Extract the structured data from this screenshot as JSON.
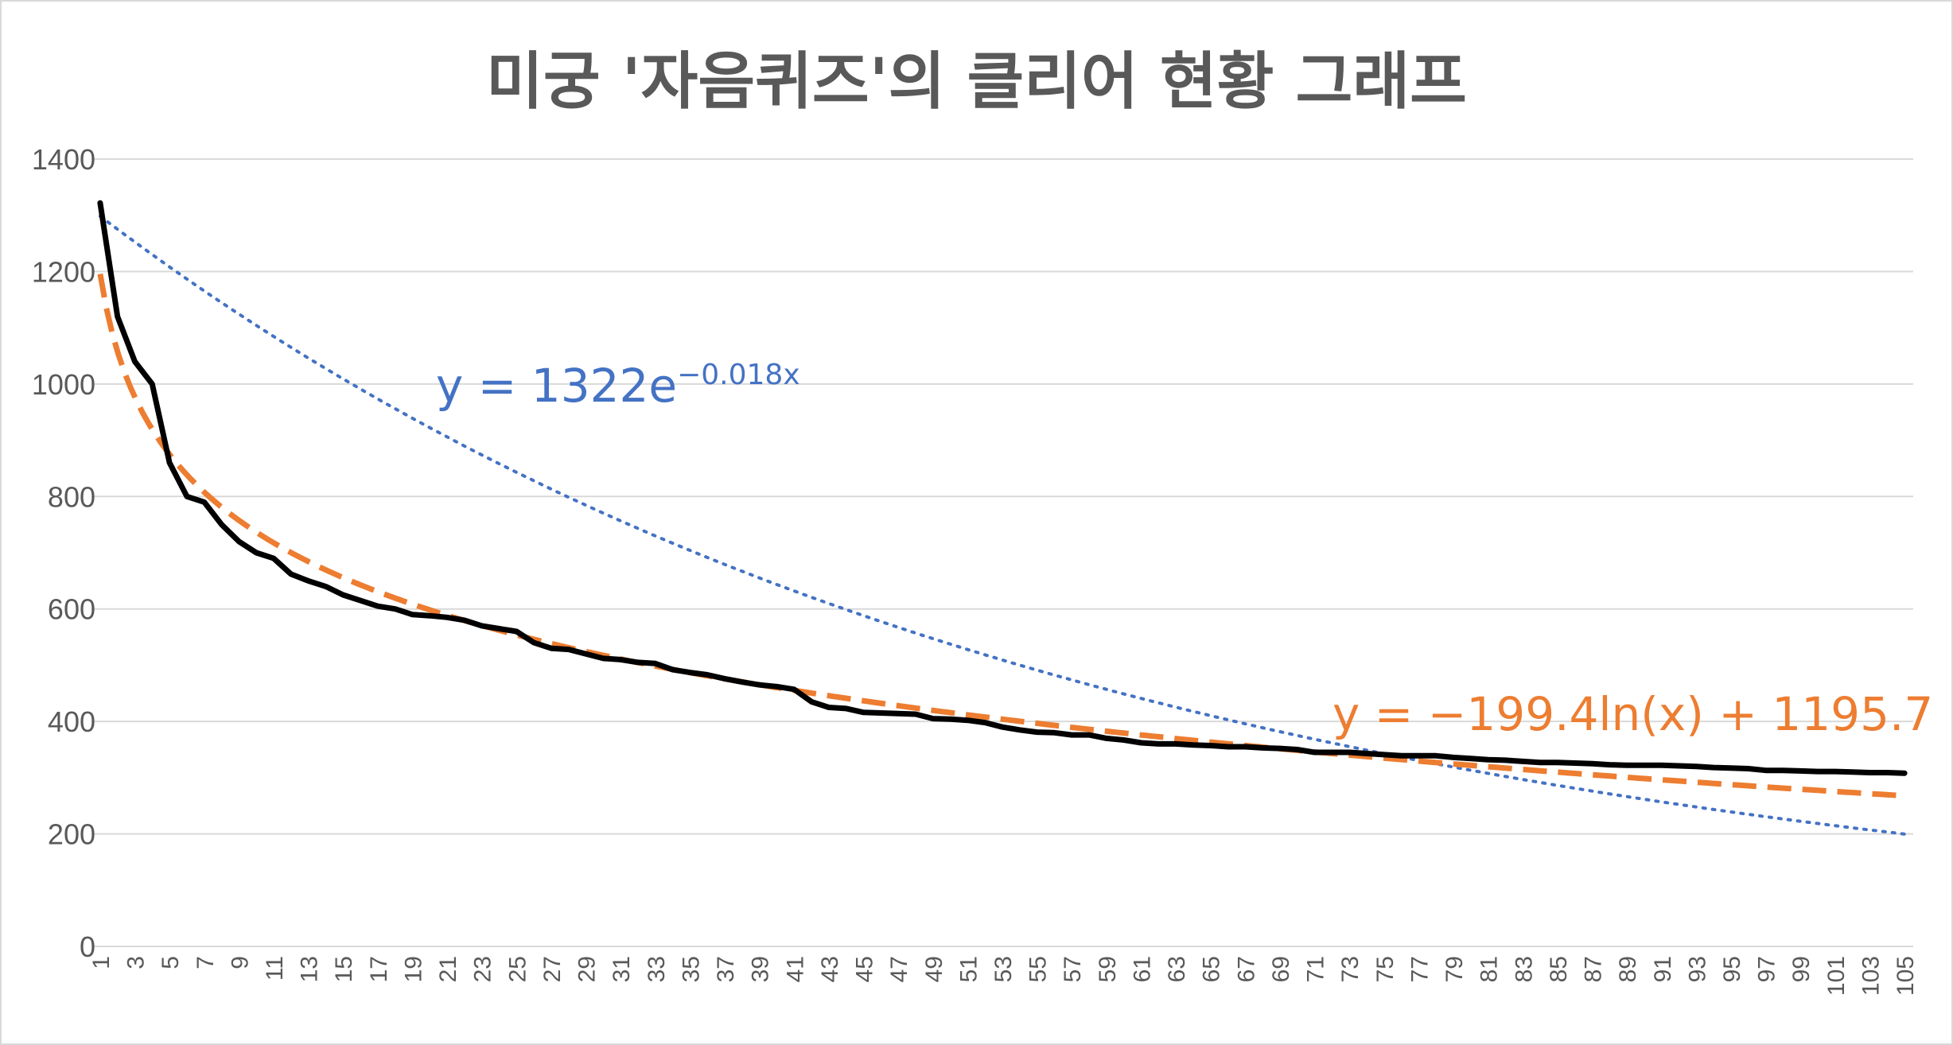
{
  "chart_data": {
    "type": "line",
    "title": "미궁 '자음퀴즈'의 클리어 현황 그래프",
    "xlabel": "",
    "ylabel": "",
    "ylim": [
      0,
      1400
    ],
    "yticks": [
      0,
      200,
      400,
      600,
      800,
      1000,
      1200,
      1400
    ],
    "x": [
      1,
      2,
      3,
      4,
      5,
      6,
      7,
      8,
      9,
      10,
      11,
      12,
      13,
      14,
      15,
      16,
      17,
      18,
      19,
      20,
      21,
      22,
      23,
      24,
      25,
      26,
      27,
      28,
      29,
      30,
      31,
      32,
      33,
      34,
      35,
      36,
      37,
      38,
      39,
      40,
      41,
      42,
      43,
      44,
      45,
      46,
      47,
      48,
      49,
      50,
      51,
      52,
      53,
      54,
      55,
      56,
      57,
      58,
      59,
      60,
      61,
      62,
      63,
      64,
      65,
      66,
      67,
      68,
      69,
      70,
      71,
      72,
      73,
      74,
      75,
      76,
      77,
      78,
      79,
      80,
      81,
      82,
      83,
      84,
      85,
      86,
      87,
      88,
      89,
      90,
      91,
      92,
      93,
      94,
      95,
      96,
      97,
      98,
      99,
      100,
      101,
      102,
      103,
      104,
      105
    ],
    "xtick_labels": [
      "1",
      "3",
      "5",
      "7",
      "9",
      "11",
      "13",
      "15",
      "17",
      "19",
      "21",
      "23",
      "25",
      "27",
      "29",
      "31",
      "33",
      "35",
      "37",
      "39",
      "41",
      "43",
      "45",
      "47",
      "49",
      "51",
      "53",
      "55",
      "57",
      "59",
      "61",
      "63",
      "65",
      "67",
      "69",
      "71",
      "73",
      "75",
      "77",
      "79",
      "81",
      "83",
      "85",
      "87",
      "89",
      "91",
      "93",
      "95",
      "97",
      "99",
      "101",
      "103",
      "105"
    ],
    "grid": true,
    "series": [
      {
        "color": "#000000",
        "values": [
          1322,
          1120,
          1040,
          1000,
          860,
          800,
          790,
          750,
          720,
          700,
          690,
          662,
          650,
          640,
          625,
          615,
          605,
          600,
          590,
          588,
          585,
          580,
          570,
          565,
          560,
          540,
          530,
          528,
          520,
          512,
          510,
          505,
          503,
          492,
          487,
          483,
          476,
          470,
          465,
          462,
          457,
          435,
          425,
          423,
          416,
          415,
          414,
          413,
          405,
          404,
          402,
          398,
          390,
          385,
          381,
          380,
          376,
          376,
          370,
          367,
          362,
          360,
          360,
          358,
          357,
          355,
          355,
          353,
          352,
          350,
          345,
          345,
          345,
          343,
          341,
          339,
          339,
          339,
          336,
          334,
          332,
          331,
          329,
          327,
          327,
          326,
          325,
          323,
          322,
          322,
          322,
          321,
          320,
          318,
          317,
          316,
          313,
          313,
          312,
          311,
          311,
          310,
          309,
          309,
          308
        ]
      }
    ],
    "trendlines": [
      {
        "kind": "exponential",
        "a": 1322,
        "b": -0.018,
        "color": "#4472c4",
        "label": "y = 1322e",
        "label_sup": "−0.018x"
      },
      {
        "kind": "logarithmic",
        "a": -199.4,
        "b": 1195.7,
        "color": "#ed7d31",
        "label": "y = −199.4ln(x) + 1195.7"
      }
    ]
  }
}
